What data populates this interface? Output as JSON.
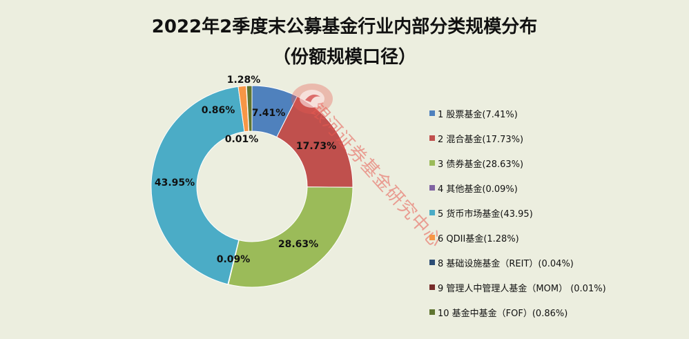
{
  "title": {
    "line1": "2022年2季度末公募基金行业内部分类规模分布",
    "line2": "（份额规模口径）"
  },
  "watermark": {
    "text": "银河证券基金研究中心",
    "color": "#e75a50"
  },
  "chart_data": {
    "type": "pie",
    "variant": "donut",
    "title": "2022年2季度末公募基金行业内部分类规模分布（份额规模口径）",
    "legend_position": "right",
    "slices": [
      {
        "legend": "1 股票基金(7.41%)",
        "value": 7.41,
        "data_label": "7.41%",
        "color": "#4f81bd"
      },
      {
        "legend": "2 混合基金(17.73%)",
        "value": 17.73,
        "data_label": "17.73%",
        "color": "#c0504d"
      },
      {
        "legend": "3 债券基金(28.63%)",
        "value": 28.63,
        "data_label": "28.63%",
        "color": "#9bbb59"
      },
      {
        "legend": "4 其他基金(0.09%)",
        "value": 0.09,
        "data_label": "0.09%",
        "color": "#8064a2"
      },
      {
        "legend": "5 货币市场基金(43.95)",
        "value": 43.95,
        "data_label": "43.95%",
        "color": "#4bacc6"
      },
      {
        "legend": "6 QDII基金(1.28%)",
        "value": 1.28,
        "data_label": "1.28%",
        "color": "#f79646"
      },
      {
        "legend": "8 基础设施基金（REIT）(0.04%)",
        "value": 0.04,
        "data_label": "",
        "color": "#2c4d75"
      },
      {
        "legend": "9 管理人中管理人基金（MOM）  (0.01%)",
        "value": 0.01,
        "data_label": "0.01%",
        "color": "#772c2a"
      },
      {
        "legend": "10 基金中基金（FOF）(0.86%)",
        "value": 0.86,
        "data_label": "0.86%",
        "color": "#5f7530"
      }
    ]
  }
}
